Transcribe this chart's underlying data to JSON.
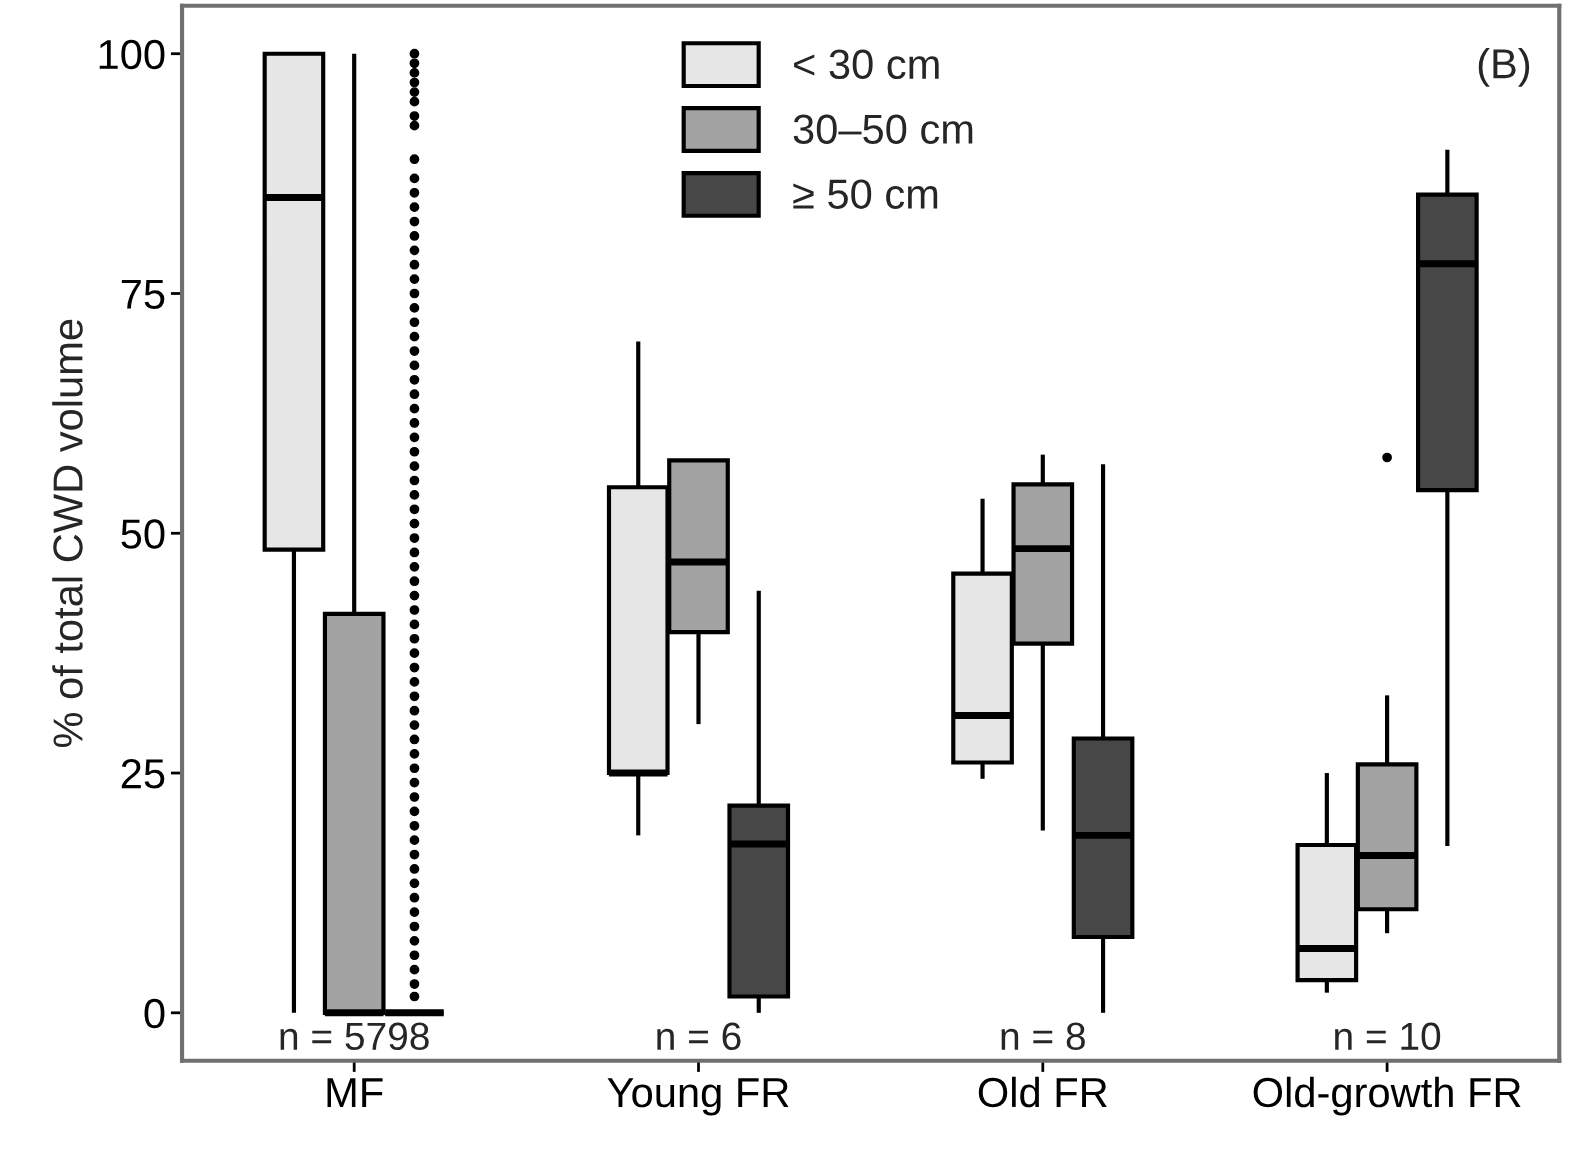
{
  "chart_data": {
    "type": "box",
    "ylabel": "% of total CWD volume",
    "categories": [
      "MF",
      "Young FR",
      "Old FR",
      "Old-growth FR"
    ],
    "series": [
      {
        "name": "< 30 cm",
        "color": "#e6e6e6",
        "boxes": [
          {
            "low": 0,
            "q1": 48.3,
            "median": 85,
            "q3": 100,
            "high": 100
          },
          {
            "low": 18.5,
            "q1": 25,
            "median": 25,
            "q3": 54.8,
            "high": 70
          },
          {
            "low": 24.4,
            "q1": 26.1,
            "median": 31,
            "q3": 45.8,
            "high": 53.6
          },
          {
            "low": 2.1,
            "q1": 3.4,
            "median": 6.7,
            "q3": 17.5,
            "high": 25
          }
        ]
      },
      {
        "name": "30–50 cm",
        "color": "#a3a3a3",
        "boxes": [
          {
            "low": 0,
            "q1": 0,
            "median": 0,
            "q3": 41.6,
            "high": 100
          },
          {
            "low": 30.1,
            "q1": 39.7,
            "median": 47,
            "q3": 57.6,
            "high": 57.6
          },
          {
            "low": 19,
            "q1": 38.5,
            "median": 48.4,
            "q3": 55.1,
            "high": 58.2
          },
          {
            "low": 8.3,
            "q1": 10.8,
            "median": 16.4,
            "q3": 25.9,
            "high": 33.1,
            "outliers": [
              57.9
            ]
          }
        ]
      },
      {
        "name": "≥ 50 cm",
        "color": "#474747",
        "boxes": [
          {
            "low": 0,
            "q1": 0,
            "median": 0,
            "q3": 0,
            "high": 0,
            "outliers": [
              1.7,
              3,
              4.5,
              6,
              7.5,
              9,
              10.5,
              12,
              13.5,
              15,
              16.5,
              18,
              19.5,
              21,
              22.5,
              24,
              25.5,
              27,
              28.5,
              30,
              31.5,
              33,
              34.5,
              36,
              37.5,
              39,
              40.5,
              42,
              43.5,
              45,
              46.5,
              48,
              49.5,
              51,
              52.5,
              54,
              55.5,
              57,
              58.5,
              60,
              61.5,
              63,
              64.5,
              66,
              67.5,
              69,
              70.5,
              72,
              73.5,
              75,
              76.5,
              78,
              79.5,
              81,
              82.5,
              84,
              85.5,
              87,
              89,
              92.5,
              93.5,
              95,
              96,
              97,
              98,
              99,
              100
            ]
          },
          {
            "low": 0,
            "q1": 1.7,
            "median": 17.6,
            "q3": 21.6,
            "high": 44
          },
          {
            "low": 0,
            "q1": 7.9,
            "median": 18.5,
            "q3": 28.6,
            "high": 57.2
          },
          {
            "low": 17.4,
            "q1": 54.5,
            "median": 78.1,
            "q3": 85.3,
            "high": 90
          }
        ]
      }
    ],
    "ylim": [
      -5,
      105
    ],
    "yticks": [
      0,
      25,
      50,
      75,
      100
    ],
    "grid": false,
    "legend": "top",
    "annotations": [
      "n = 5798",
      "n = 6",
      "n = 8",
      "n = 10",
      "(B)"
    ]
  }
}
